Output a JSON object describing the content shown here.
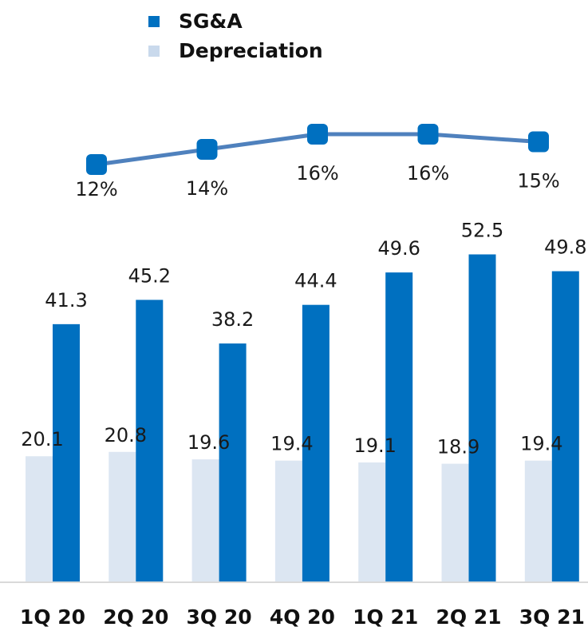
{
  "colors": {
    "sga": "#0070c0",
    "depreciation": "#dce6f2",
    "line": "#4f81bd",
    "line_marker": "#0070c0",
    "baseline": "#d9d9d9",
    "text": "#1a1a1a"
  },
  "legend": [
    {
      "label": "SG&A",
      "color": "#0070c0"
    },
    {
      "label": "Depreciation",
      "color": "#c9d9ec"
    }
  ],
  "chart_data": {
    "type": "bar",
    "categories": [
      "1Q 20",
      "2Q 20",
      "3Q 20",
      "4Q 20",
      "1Q 21",
      "2Q 21",
      "3Q 21"
    ],
    "series": [
      {
        "name": "Depreciation",
        "values": [
          20.1,
          20.8,
          19.6,
          19.4,
          19.1,
          18.9,
          19.4
        ]
      },
      {
        "name": "SG&A",
        "values": [
          41.3,
          45.2,
          38.2,
          44.4,
          49.6,
          52.5,
          49.8
        ]
      }
    ],
    "line_series": {
      "values": [
        12,
        14,
        16,
        16,
        15
      ],
      "labels": [
        "12%",
        "14%",
        "16%",
        "16%",
        "15%"
      ]
    },
    "legend_position": "top-left"
  }
}
